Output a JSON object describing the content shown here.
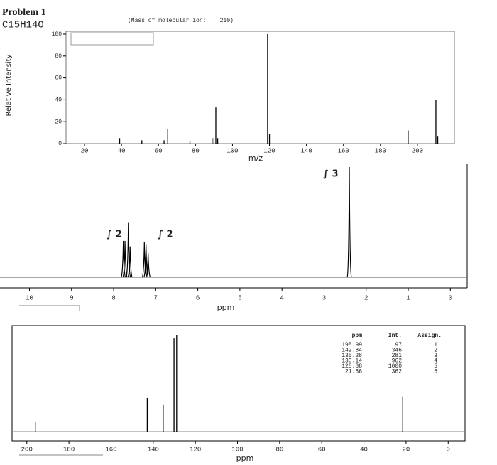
{
  "header": {
    "title": "Problem 1",
    "formula": "C15H14O",
    "note": "(Mass of molecular ion:    210)"
  },
  "chart_data": [
    {
      "type": "stem",
      "x_label": "m/z",
      "y_label": "Relative Intensity",
      "x": [
        39,
        51,
        63,
        65,
        77,
        89,
        90,
        91,
        92,
        119,
        120,
        195,
        210,
        211
      ],
      "values": [
        5,
        3,
        3,
        13,
        2,
        5,
        5,
        33,
        5,
        100,
        9,
        12,
        40,
        7
      ],
      "xlim": [
        10,
        220
      ],
      "ylim": [
        0,
        100
      ],
      "xticks": [
        20,
        40,
        60,
        80,
        100,
        120,
        140,
        160,
        180,
        200
      ],
      "yticks": [
        0,
        20,
        40,
        60,
        80,
        100
      ],
      "color": "#000000"
    },
    {
      "type": "peaks",
      "x_label": "ppm",
      "x": [
        7.77,
        7.73,
        7.65,
        7.61,
        7.27,
        7.23,
        7.18,
        2.4
      ],
      "values": [
        0.33,
        0.33,
        0.5,
        0.28,
        0.32,
        0.3,
        0.22,
        1
      ],
      "xlim": [
        10.7,
        -0.4
      ],
      "ylim": [
        0,
        1
      ],
      "xticks": [
        10,
        9,
        8,
        7,
        6,
        5,
        4,
        3,
        2,
        1,
        0
      ],
      "integrals": [
        "∫ 2",
        "∫ 2",
        "∫ 3"
      ],
      "color": "#000000"
    },
    {
      "type": "stem",
      "x_label": "ppm",
      "x": [
        195.99,
        142.84,
        135.28,
        130.14,
        128.88,
        21.56
      ],
      "values": [
        97,
        346,
        281,
        962,
        1000,
        362
      ],
      "assign": [
        1,
        2,
        3,
        4,
        5,
        6
      ],
      "table_header": [
        "ppm",
        "Int.",
        "Assign."
      ],
      "xlim": [
        207,
        -8
      ],
      "ylim": [
        0,
        1000
      ],
      "xticks": [
        200,
        180,
        160,
        140,
        120,
        100,
        80,
        60,
        40,
        20,
        0
      ],
      "color": "#000000"
    }
  ]
}
